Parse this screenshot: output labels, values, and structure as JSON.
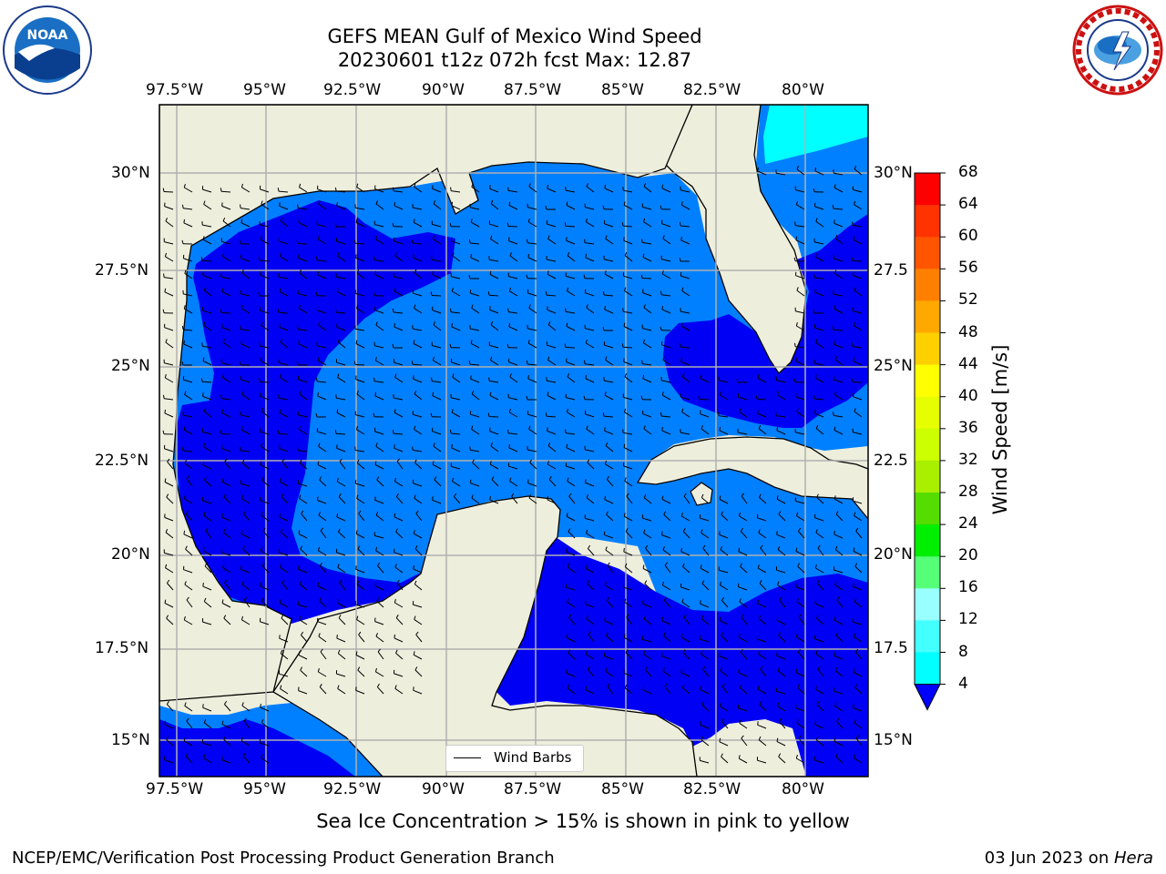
{
  "title": {
    "line1": "GEFS MEAN Gulf of Mexico Wind Speed",
    "line2": "20230601 t12z 072h fcst   Max: 12.87"
  },
  "logos": {
    "left": "noaa-logo",
    "right": "nws-logo"
  },
  "map": {
    "lon_ticks": [
      "97.5°W",
      "95°W",
      "92.5°W",
      "90°W",
      "87.5°W",
      "85°W",
      "82.5°W",
      "80°W"
    ],
    "lat_ticks_left": [
      "30°N",
      "27.5°N",
      "25°N",
      "22.5°N",
      "20°N",
      "17.5°N",
      "15°N"
    ],
    "lat_ticks_right": [
      "30°N",
      "27.5",
      "25°N",
      "22.5",
      "20°N",
      "17.5",
      "15°N"
    ],
    "extent": {
      "lon_min": -98,
      "lon_max": -78.2,
      "lat_min": 14.0,
      "lat_max": 31.8
    },
    "colors": {
      "land": "#eeeedd",
      "wind_4_8": "#0000f5",
      "wind_8_12": "#0080ff",
      "wind_12_16": "#00ffff",
      "grid": "#b0b0b0"
    },
    "legend_label": "Wind Barbs"
  },
  "colorbar": {
    "title": "Wind Speed [m/s]",
    "labels": [
      "68",
      "64",
      "60",
      "56",
      "52",
      "48",
      "44",
      "40",
      "36",
      "32",
      "28",
      "24",
      "20",
      "16",
      "12",
      "8",
      "4"
    ],
    "colors": [
      "#ff0000",
      "#ff3300",
      "#ff5500",
      "#ff8000",
      "#ffa800",
      "#ffd000",
      "#ffff00",
      "#e6ff00",
      "#ccff00",
      "#aaee00",
      "#55dd00",
      "#00ee00",
      "#55ff77",
      "#99ffff",
      "#44ffff",
      "#00ffff",
      "#0080ff",
      "#0000ff"
    ]
  },
  "caption": "Sea Ice Concentration > 15% is shown in pink to yellow",
  "footer": {
    "left": "NCEP/EMC/Verification Post Processing Product Generation Branch",
    "date": "03 Jun 2023 on ",
    "host": "Hera"
  }
}
